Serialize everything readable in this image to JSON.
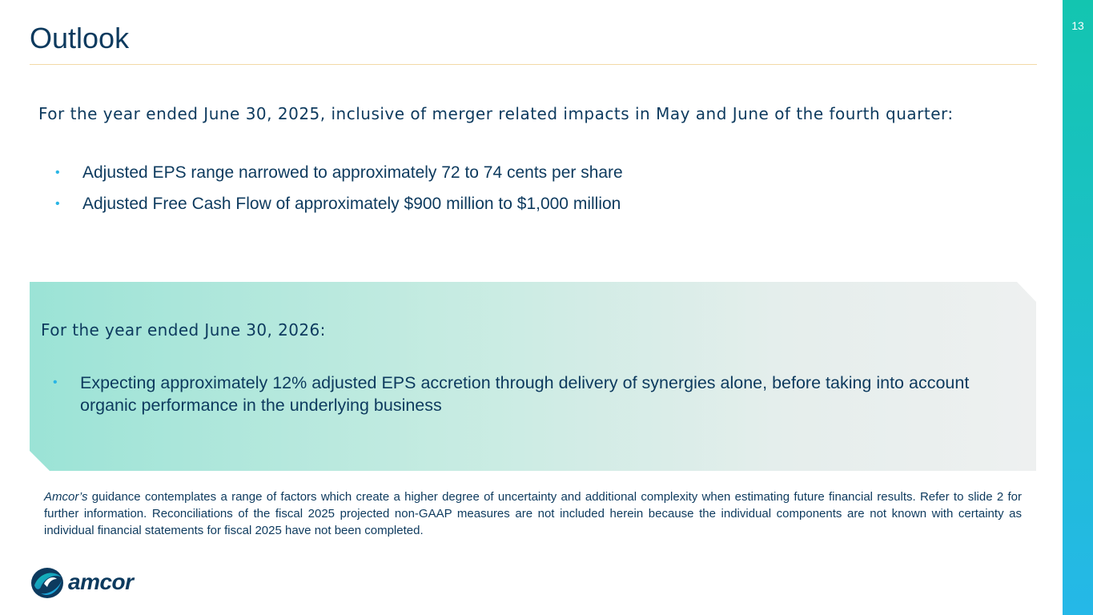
{
  "slide": {
    "title": "Outlook",
    "page_number": "13"
  },
  "fy2025": {
    "intro": "For the year ended June 30, 2025, inclusive of merger related impacts in May and June of the fourth quarter:",
    "bullets": [
      "Adjusted EPS range narrowed to approximately 72 to 74 cents per share",
      "Adjusted Free Cash Flow of approximately $900 million to $1,000 million"
    ]
  },
  "fy2026": {
    "intro": "For the year ended June 30, 2026:",
    "bullets": [
      "Expecting approximately 12% adjusted EPS accretion through delivery of synergies alone, before taking into account organic performance in the underlying business"
    ]
  },
  "disclaimer": {
    "company": "Amcor’s",
    "text": " guidance contemplates a range of factors which create a higher degree of uncertainty and additional complexity when estimating future financial results. Refer to slide 2 for further information.  Reconciliations of the fiscal 2025 projected non-GAAP measures are not included herein because the individual components are not known with certainty as individual financial statements for fiscal 2025 have not been completed."
  },
  "logo": {
    "text": "amcor",
    "icon": "amcor-globe-icon"
  },
  "bullet_glyph": "•",
  "colors": {
    "text": "#0d3a5e",
    "accent": "#29b5e5",
    "side_bar_top": "#13c5b0",
    "side_bar_bottom": "#25b8e8"
  }
}
